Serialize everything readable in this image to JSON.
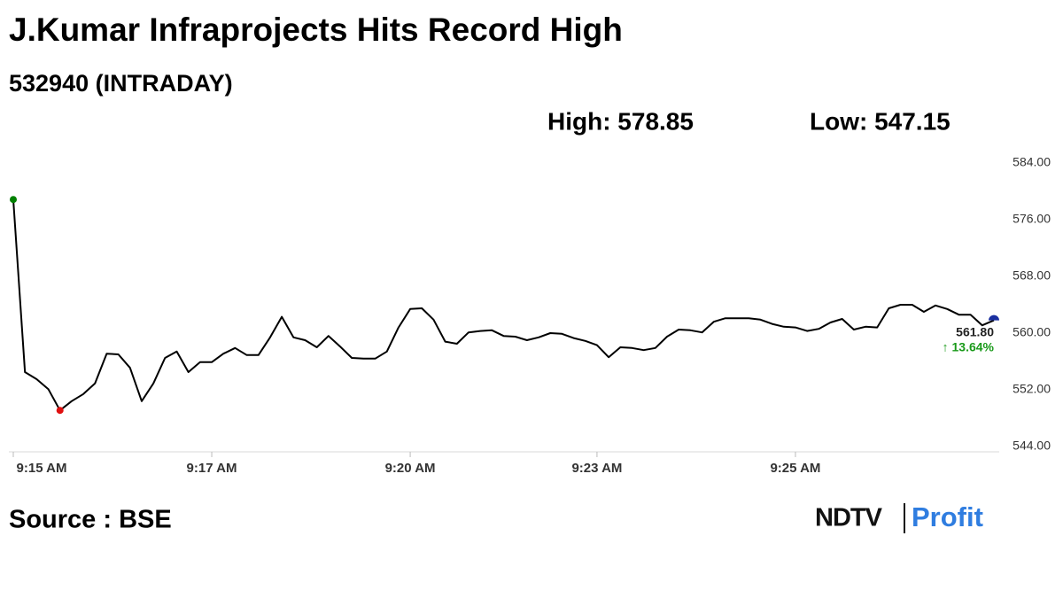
{
  "chart_data": {
    "type": "line",
    "title": "J.Kumar Infraprojects Hits Record High",
    "subtitle": "532940 (INTRADAY)",
    "high_label": "High: 578.85",
    "low_label": "Low: 547.15",
    "last_label": "561.80",
    "change_label": "↑ 13.64%",
    "source": "Source : BSE",
    "logo": [
      "NDTV",
      "Profit"
    ],
    "categories": [
      "9:15 AM",
      null,
      null,
      null,
      null,
      null,
      null,
      null,
      null,
      null,
      null,
      null,
      null,
      null,
      null,
      null,
      null,
      "9:17 AM",
      null,
      null,
      null,
      null,
      null,
      null,
      null,
      null,
      null,
      null,
      null,
      null,
      null,
      null,
      null,
      null,
      "9:20 AM",
      null,
      null,
      null,
      null,
      null,
      null,
      null,
      null,
      null,
      null,
      null,
      null,
      null,
      null,
      null,
      "9:23 AM",
      null,
      null,
      null,
      null,
      null,
      null,
      null,
      null,
      null,
      null,
      null,
      null,
      null,
      null,
      null,
      null,
      "9:25 AM",
      null,
      null,
      null,
      null,
      null,
      null,
      null,
      null,
      null,
      null,
      null,
      null,
      null,
      null,
      null,
      null,
      null
    ],
    "series": [
      {
        "name": "532940",
        "color": "#000000",
        "values": [
          578.85,
          554.5,
          553.5,
          552.1,
          549.1,
          550.4,
          551.4,
          552.9,
          557.1,
          557.0,
          555.1,
          550.4,
          552.9,
          556.5,
          557.4,
          554.5,
          555.9,
          555.9,
          557.1,
          557.9,
          556.9,
          556.9,
          559.4,
          562.3,
          559.4,
          559.0,
          558.0,
          559.6,
          558.1,
          556.5,
          556.4,
          556.4,
          557.4,
          560.8,
          563.4,
          563.5,
          561.9,
          558.8,
          558.5,
          560.1,
          560.3,
          560.4,
          559.6,
          559.5,
          559.0,
          559.4,
          560.0,
          559.9,
          559.3,
          558.9,
          558.3,
          556.6,
          558.0,
          557.9,
          557.6,
          557.9,
          559.5,
          560.5,
          560.4,
          560.1,
          561.6,
          562.1,
          562.1,
          562.1,
          561.9,
          561.3,
          560.9,
          560.8,
          560.3,
          560.6,
          561.5,
          562.0,
          560.5,
          560.9,
          560.8,
          563.5,
          564.0,
          564.0,
          563.0,
          563.9,
          563.4,
          562.6,
          562.6,
          561.1,
          561.8
        ]
      }
    ],
    "ylim": [
      544,
      584
    ],
    "yticks": [
      {
        "value": 544,
        "label": "544.00"
      },
      {
        "value": 552,
        "label": "552.00"
      },
      {
        "value": 560,
        "label": "560.00"
      },
      {
        "value": 568,
        "label": "568.00"
      },
      {
        "value": 576,
        "label": "576.00"
      },
      {
        "value": 584,
        "label": "584.00"
      }
    ],
    "marker_colors": {
      "first": "#008000",
      "low": "#e01010",
      "last": "#1a2fa0"
    },
    "change_color": "#1a9a1a",
    "grid": false
  }
}
